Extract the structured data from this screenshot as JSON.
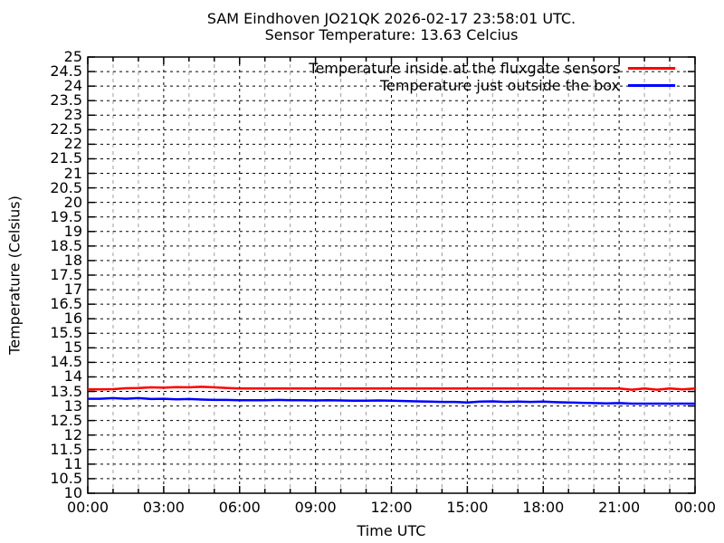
{
  "chart_data": {
    "type": "line",
    "title": "SAM Eindhoven JO21QK 2026-02-17 23:58:01 UTC.",
    "subtitle": "Sensor Temperature: 13.63 Celcius",
    "xlabel": "Time UTC",
    "ylabel": "Temperature (Celsius)",
    "ylim": [
      10,
      25
    ],
    "ytick_step": 0.5,
    "yticks": [
      "10",
      "10.5",
      "11",
      "11.5",
      "12",
      "12.5",
      "13",
      "13.5",
      "14",
      "14.5",
      "15",
      "15.5",
      "16",
      "16.5",
      "17",
      "17.5",
      "18",
      "18.5",
      "19",
      "19.5",
      "20",
      "20.5",
      "21",
      "21.5",
      "22",
      "22.5",
      "23",
      "23.5",
      "24",
      "24.5",
      "25"
    ],
    "xlim_hours": [
      0,
      24
    ],
    "xticks": [
      "00:00",
      "03:00",
      "06:00",
      "09:00",
      "12:00",
      "15:00",
      "18:00",
      "21:00",
      "00:00"
    ],
    "xtick_hours": [
      0,
      3,
      6,
      9,
      12,
      15,
      18,
      21,
      24
    ],
    "minor_xtick_interval_hours": 1,
    "grid": "on",
    "legend_position": "top-right-inside",
    "x_hours": [
      0,
      0.5,
      1,
      1.5,
      2,
      2.5,
      3,
      3.5,
      4,
      4.5,
      5,
      5.5,
      6,
      6.5,
      7,
      7.5,
      8,
      8.5,
      9,
      9.5,
      10,
      10.5,
      11,
      11.5,
      12,
      12.5,
      13,
      13.5,
      14,
      14.5,
      15,
      15.5,
      16,
      16.5,
      17,
      17.5,
      18,
      18.5,
      19,
      19.5,
      20,
      20.5,
      21,
      21.5,
      22,
      22.5,
      23,
      23.5,
      24
    ],
    "series": [
      {
        "name": "Temperature inside at the fluxgate sensors",
        "color": "#ff0000",
        "values": [
          13.57,
          13.57,
          13.58,
          13.61,
          13.62,
          13.64,
          13.63,
          13.65,
          13.64,
          13.66,
          13.64,
          13.62,
          13.6,
          13.6,
          13.6,
          13.6,
          13.6,
          13.6,
          13.6,
          13.6,
          13.6,
          13.6,
          13.6,
          13.6,
          13.6,
          13.6,
          13.6,
          13.6,
          13.6,
          13.6,
          13.6,
          13.6,
          13.6,
          13.6,
          13.6,
          13.6,
          13.6,
          13.6,
          13.6,
          13.6,
          13.6,
          13.6,
          13.6,
          13.56,
          13.6,
          13.56,
          13.6,
          13.57,
          13.6
        ]
      },
      {
        "name": "Temperature just outside the box",
        "color": "#0000ff",
        "values": [
          13.25,
          13.25,
          13.27,
          13.25,
          13.27,
          13.24,
          13.25,
          13.23,
          13.24,
          13.22,
          13.21,
          13.21,
          13.2,
          13.2,
          13.2,
          13.21,
          13.2,
          13.2,
          13.19,
          13.2,
          13.19,
          13.18,
          13.18,
          13.19,
          13.18,
          13.17,
          13.16,
          13.15,
          13.14,
          13.14,
          13.12,
          13.15,
          13.16,
          13.14,
          13.15,
          13.14,
          13.15,
          13.13,
          13.12,
          13.11,
          13.1,
          13.09,
          13.1,
          13.08,
          13.08,
          13.08,
          13.08,
          13.08,
          13.08
        ]
      }
    ],
    "colors": {
      "grid_major": "#000000",
      "grid_minor": "#9f9f9f",
      "border": "#000000"
    }
  }
}
